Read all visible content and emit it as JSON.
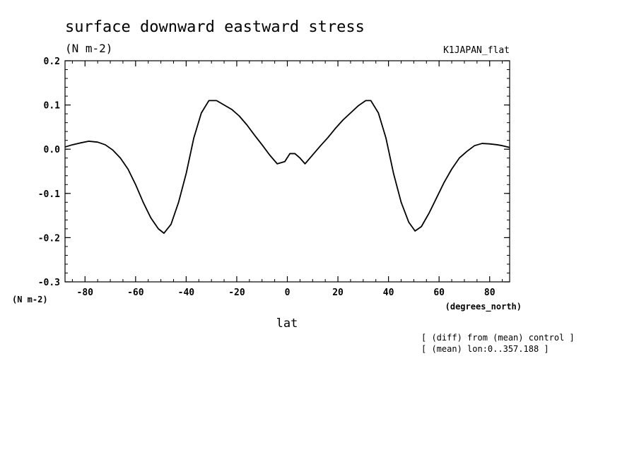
{
  "chart_data": {
    "type": "line",
    "title": "surface downward eastward stress",
    "units": "(N m-2)",
    "run_label": "K1JAPAN_flat",
    "xlabel": "lat",
    "x_units": "(degrees_north)",
    "y_units": "(N m-2)",
    "notes": [
      "[ (diff) from (mean) control ]",
      "[ (mean) lon:0..357.188 ]"
    ],
    "xlim": [
      -87.9,
      87.9
    ],
    "ylim": [
      -0.3,
      0.2
    ],
    "x_ticks": [
      -80,
      -60,
      -40,
      -20,
      0,
      20,
      40,
      60,
      80
    ],
    "x_tick_labels": [
      "-80",
      "-60",
      "-40",
      "-20",
      "0",
      "20",
      "40",
      "60",
      "80"
    ],
    "y_ticks": [
      0.2,
      0.1,
      0.0,
      -0.1,
      -0.2,
      -0.3
    ],
    "y_tick_labels": [
      "0.2",
      "0.1",
      "0.0",
      "-0.1",
      "-0.2",
      "-0.3"
    ],
    "grid": false,
    "series": [
      {
        "x": [
          -87.9,
          -85,
          -82,
          -78.5,
          -75,
          -72,
          -69,
          -66,
          -63,
          -60,
          -57,
          -54,
          -51,
          -48.8,
          -46,
          -43,
          -40,
          -37,
          -34,
          -31,
          -28,
          -25,
          -22,
          -19,
          -16,
          -13,
          -10,
          -7,
          -4,
          -1,
          1,
          3,
          5,
          7,
          10,
          13,
          16,
          19,
          22,
          25,
          28,
          31,
          33,
          36,
          39,
          42,
          45,
          48,
          50.5,
          53,
          56,
          59,
          62,
          65,
          68,
          71,
          74,
          77,
          80,
          83,
          85,
          87.9
        ],
        "y": [
          0.005,
          0.01,
          0.014,
          0.018,
          0.016,
          0.01,
          -0.002,
          -0.02,
          -0.045,
          -0.08,
          -0.12,
          -0.155,
          -0.18,
          -0.19,
          -0.17,
          -0.12,
          -0.055,
          0.025,
          0.082,
          0.11,
          0.11,
          0.1,
          0.09,
          0.075,
          0.055,
          0.032,
          0.01,
          -0.013,
          -0.033,
          -0.028,
          -0.01,
          -0.01,
          -0.02,
          -0.033,
          -0.013,
          0.007,
          0.026,
          0.047,
          0.066,
          0.082,
          0.098,
          0.11,
          0.11,
          0.082,
          0.025,
          -0.055,
          -0.12,
          -0.165,
          -0.185,
          -0.175,
          -0.145,
          -0.11,
          -0.075,
          -0.045,
          -0.02,
          -0.005,
          0.008,
          0.013,
          0.012,
          0.01,
          0.008,
          0.004
        ]
      }
    ],
    "colors": {
      "line": "#000000",
      "axis": "#000000",
      "background": "#ffffff"
    }
  }
}
